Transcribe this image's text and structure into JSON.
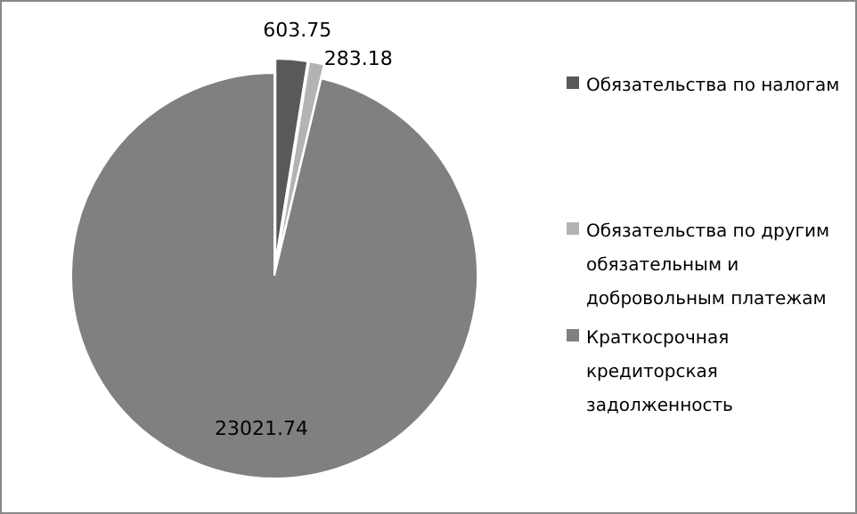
{
  "chart_data": {
    "type": "pie",
    "categories": [
      "Обязательства по налогам",
      "Обязательства по другим обязательным и добровольным платежам",
      "Краткосрочная кредиторская задолженность"
    ],
    "values": [
      603.75,
      283.18,
      23021.74
    ],
    "colors": [
      "#595959",
      "#b3b3b3",
      "#808080"
    ],
    "data_labels": true,
    "legend": "right"
  }
}
